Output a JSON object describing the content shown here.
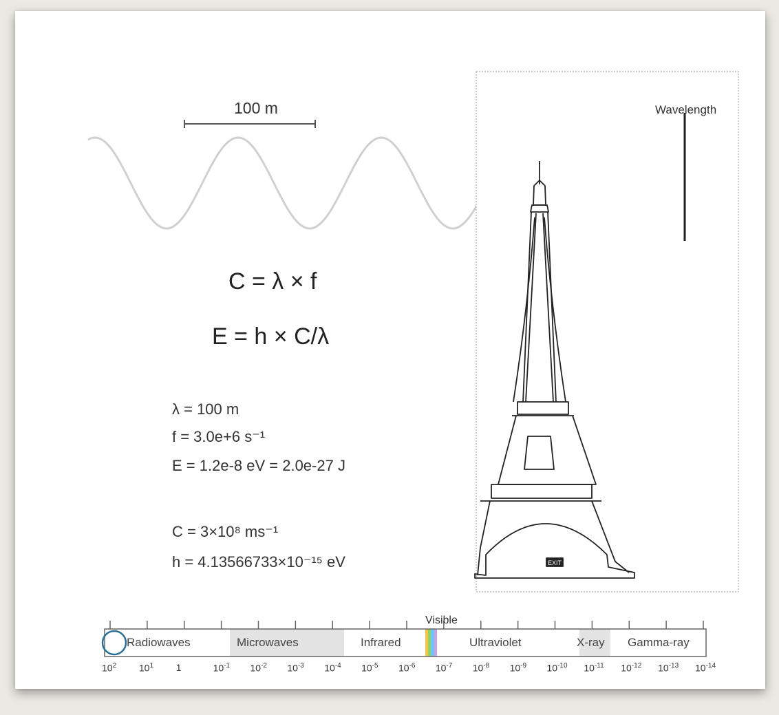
{
  "scale_bar": {
    "label": "100 m"
  },
  "equations": {
    "speed": "C = λ × f",
    "energy": "E = h × C/λ"
  },
  "values": {
    "lambda": "λ = 100 m",
    "frequency": "f = 3.0e+6 s⁻¹",
    "energy": "E = 1.2e-8 eV = 2.0e-27 J",
    "speed_constant": "C = 3×10⁸ ms⁻¹",
    "planck": "h = 4.13566733×10⁻¹⁵ eV"
  },
  "object_panel": {
    "wavelength_label": "Wavelength",
    "sign_text": "EXIT"
  },
  "spectrum": {
    "visible_label": "Visible",
    "bands": [
      "Radiowaves",
      "Microwaves",
      "Infrared",
      "Ultraviolet",
      "X-ray",
      "Gamma-ray"
    ],
    "tick_labels": [
      {
        "base": "10",
        "exp": "2"
      },
      {
        "base": "10",
        "exp": "1"
      },
      {
        "base": "1",
        "exp": ""
      },
      {
        "base": "10",
        "exp": "-1"
      },
      {
        "base": "10",
        "exp": "-2"
      },
      {
        "base": "10",
        "exp": "-3"
      },
      {
        "base": "10",
        "exp": "-4"
      },
      {
        "base": "10",
        "exp": "-5"
      },
      {
        "base": "10",
        "exp": "-6"
      },
      {
        "base": "10",
        "exp": "-7"
      },
      {
        "base": "10",
        "exp": "-8"
      },
      {
        "base": "10",
        "exp": "-9"
      },
      {
        "base": "10",
        "exp": "-10"
      },
      {
        "base": "10",
        "exp": "-11"
      },
      {
        "base": "10",
        "exp": "-12"
      },
      {
        "base": "10",
        "exp": "-13"
      },
      {
        "base": "10",
        "exp": "-14"
      }
    ],
    "tick_display": [
      "10²",
      "10¹",
      "1",
      "10⁻¹",
      "10⁻²",
      "10⁻³",
      "10⁻⁴",
      "10⁻⁵",
      "10⁻⁶",
      "10⁻⁷",
      "10⁻⁸",
      "10⁻⁹",
      "10⁻¹⁰",
      "10⁻¹¹",
      "10⁻¹²",
      "10⁻¹³",
      "10⁻¹⁴"
    ],
    "selected_wavelength": "10²"
  },
  "colors": {
    "wave": "#d0d0d0",
    "highlight_band": "#e3e3e3",
    "marker": "#2b6f99",
    "visible_strip": [
      "#f4c542",
      "#8fd16a",
      "#6ec6f0",
      "#c7a3e6"
    ]
  }
}
